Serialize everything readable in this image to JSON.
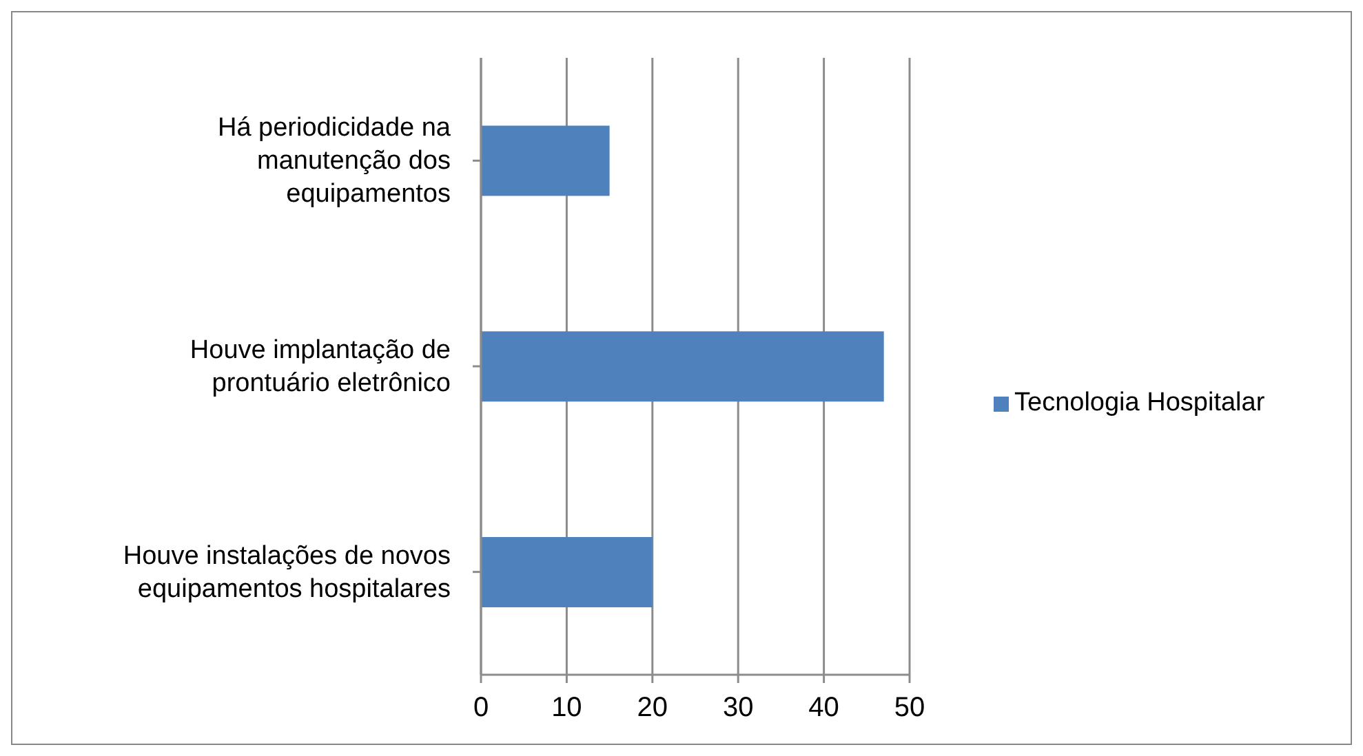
{
  "chart_data": {
    "type": "bar",
    "orientation": "horizontal",
    "categories": [
      "Há periodicidade na manutenção dos equipamentos",
      "Houve implantação de prontuário eletrônico",
      "Houve instalações de novos equipamentos hospitalares"
    ],
    "series": [
      {
        "name": "Tecnologia Hospitalar",
        "color": "#4f81bd",
        "values": [
          15,
          47,
          20
        ]
      }
    ],
    "xlim": [
      0,
      50
    ],
    "xticks": [
      0,
      10,
      20,
      30,
      40,
      50
    ],
    "grid": "x",
    "legend": "right"
  }
}
